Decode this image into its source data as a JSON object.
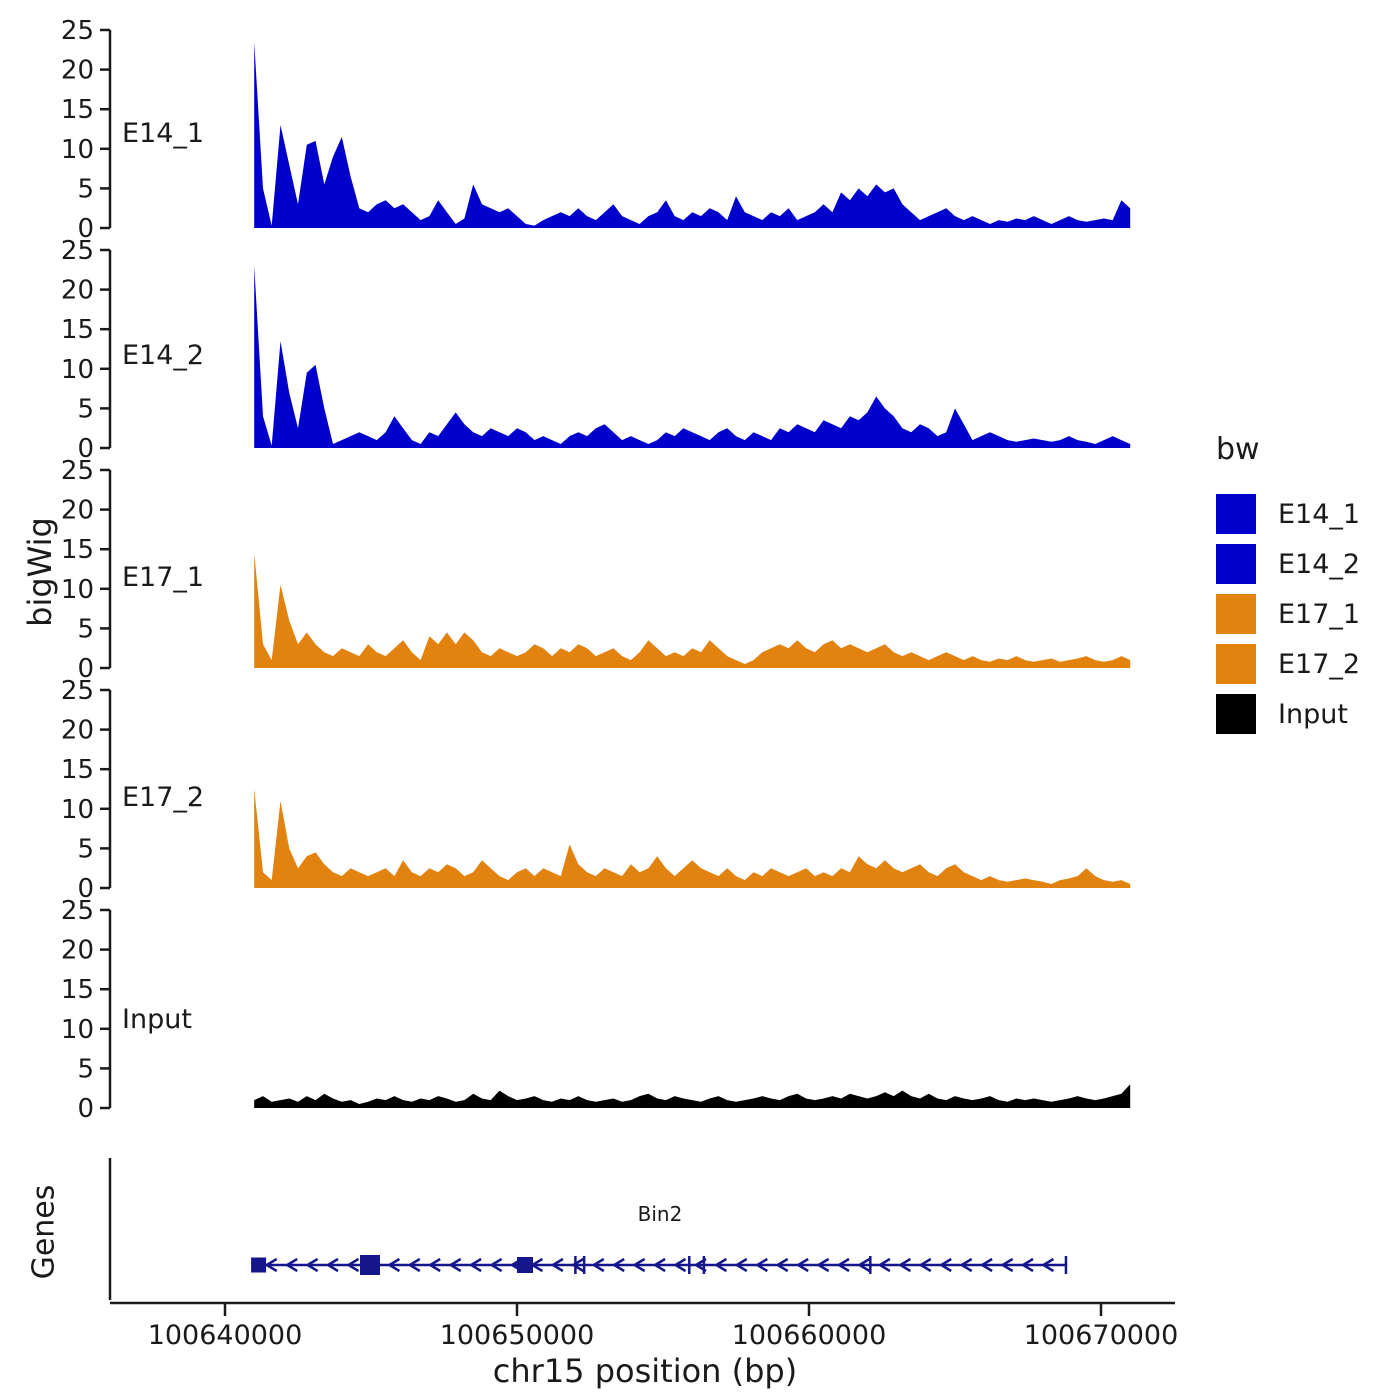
{
  "figure": {
    "background": "#FFFFFF"
  },
  "y_axis": {
    "title": "bigWig",
    "ticks": [
      25,
      20,
      15,
      10,
      5,
      0
    ]
  },
  "x_axis": {
    "title": "chr15 position (bp)",
    "ticks": [
      {
        "bp": 100640000,
        "label": "100640000"
      },
      {
        "bp": 100650000,
        "label": "100650000"
      },
      {
        "bp": 100660000,
        "label": "100660000"
      },
      {
        "bp": 100670000,
        "label": "100670000"
      }
    ]
  },
  "legend": {
    "title": "bw",
    "items": [
      {
        "label": "E14_1",
        "color": "#0000CD"
      },
      {
        "label": "E14_2",
        "color": "#0000CD"
      },
      {
        "label": "E17_1",
        "color": "#E2820F"
      },
      {
        "label": "E17_2",
        "color": "#E2820F"
      },
      {
        "label": "Input",
        "color": "#000000"
      }
    ]
  },
  "genes_panel": {
    "title": "Genes",
    "gene": {
      "name": "Bin2",
      "color": "#16168C",
      "strand": "-",
      "start": 100641000,
      "end": 100668800,
      "arrow_spacing": 700,
      "exons": [
        {
          "bp": 100641150,
          "size": 15
        },
        {
          "bp": 100644966,
          "size": 20
        },
        {
          "bp": 100650274,
          "size": 16
        }
      ],
      "boundaries": [
        100652000,
        100652300,
        100655900,
        100656400,
        100662100
      ]
    }
  },
  "chart_data": {
    "type": "area",
    "title": "",
    "xlabel": "chr15 position (bp)",
    "ylabel": "bigWig",
    "ylim": [
      0,
      25
    ],
    "x_start": 100641000,
    "x_step": 300,
    "x_unit": "bp",
    "legend_position": "right",
    "grid": false,
    "series": [
      {
        "name": "E14_1",
        "color": "#0000CD",
        "values": [
          23.5,
          5,
          0.3,
          13,
          8,
          3,
          10.5,
          11,
          5.5,
          9,
          11.5,
          6.5,
          2.5,
          2,
          3,
          3.5,
          2.5,
          3,
          2,
          1,
          1.5,
          3.5,
          2,
          0.5,
          1.2,
          5.5,
          3,
          2.5,
          2,
          2.5,
          1.5,
          0.5,
          0.3,
          1,
          1.5,
          2,
          1.5,
          2.5,
          1.5,
          1,
          2,
          3,
          1.5,
          1,
          0.5,
          1.5,
          2,
          3.5,
          1.5,
          1,
          2,
          1.5,
          2.5,
          2,
          1,
          4,
          2,
          1.5,
          1,
          2,
          1.5,
          2.5,
          1,
          1.5,
          2,
          3,
          2,
          4.5,
          3.5,
          5,
          4,
          5.5,
          4.5,
          5,
          3,
          2,
          1,
          1.5,
          2,
          2.5,
          1.5,
          1,
          1.5,
          1,
          0.5,
          1,
          0.8,
          1.2,
          1,
          1.5,
          1,
          0.5,
          1,
          1.5,
          1,
          0.8,
          1,
          1.2,
          1,
          3.5,
          2.5
        ]
      },
      {
        "name": "E14_2",
        "color": "#0000CD",
        "values": [
          23,
          4,
          0.3,
          13.5,
          7,
          2.5,
          9.5,
          10.5,
          5,
          0.5,
          1,
          1.5,
          2,
          1.5,
          1,
          2,
          4,
          2.5,
          1,
          0.5,
          2,
          1.5,
          3,
          4.5,
          3,
          2,
          1.5,
          2.5,
          2,
          1.5,
          2.5,
          2,
          1,
          1.5,
          1,
          0.5,
          1.5,
          2,
          1.5,
          2.5,
          3,
          2,
          1,
          1.5,
          1,
          0.5,
          1,
          2,
          1.5,
          2.5,
          2,
          1.5,
          1,
          2,
          2.5,
          1.5,
          1,
          2,
          1.5,
          1,
          2.5,
          2,
          3,
          2.5,
          2,
          3.5,
          3,
          2.5,
          4,
          3.5,
          4.5,
          6.5,
          5,
          4,
          2.5,
          2,
          3,
          2.5,
          1.5,
          2,
          5,
          3,
          1,
          1.5,
          2,
          1.5,
          1,
          0.8,
          1,
          1.2,
          1,
          0.8,
          1,
          1.5,
          1,
          0.8,
          0.5,
          1,
          1.5,
          1,
          0.5
        ]
      },
      {
        "name": "E17_1",
        "color": "#E2820F",
        "values": [
          14.5,
          3,
          1,
          10.5,
          6,
          3,
          4.5,
          3,
          2,
          1.5,
          2.5,
          2,
          1.5,
          3,
          2,
          1.5,
          2.5,
          3.5,
          2,
          1,
          4,
          3,
          4.5,
          3,
          4.5,
          3.5,
          2,
          1.5,
          2.5,
          2,
          1.5,
          2,
          3,
          2.5,
          1.5,
          2.5,
          2,
          3,
          2.5,
          1.5,
          2,
          2.5,
          1.5,
          1,
          2,
          3.5,
          2.5,
          1.5,
          2,
          1.5,
          2.5,
          2,
          3.5,
          2.5,
          1.5,
          1,
          0.5,
          1,
          2,
          2.5,
          3,
          2.5,
          3.5,
          2.5,
          2,
          3,
          3.5,
          2.5,
          3,
          2.5,
          2,
          2.5,
          3,
          2,
          1.5,
          2,
          1.5,
          1,
          1.5,
          2,
          1.5,
          1,
          1.5,
          1,
          0.8,
          1.2,
          1,
          1.5,
          1,
          0.8,
          1,
          1.2,
          0.8,
          1,
          1.2,
          1.5,
          1,
          0.8,
          1,
          1.5,
          1
        ]
      },
      {
        "name": "E17_2",
        "color": "#E2820F",
        "values": [
          12.5,
          2,
          1,
          11,
          5,
          2.5,
          4,
          4.5,
          3,
          2,
          1.5,
          2.5,
          2,
          1.5,
          2,
          2.5,
          1.5,
          3.5,
          2,
          1.5,
          2.5,
          2,
          3,
          2.5,
          1.5,
          2,
          3.5,
          2.5,
          1.5,
          1,
          2,
          2.5,
          1.5,
          2.5,
          2,
          1.5,
          5.5,
          3,
          2,
          1.5,
          2.5,
          2,
          1.5,
          3,
          2,
          2.5,
          4,
          2.5,
          1.5,
          2.5,
          3.5,
          2.5,
          2,
          1.5,
          2.5,
          1.5,
          1,
          2,
          1.5,
          2.5,
          2,
          1.5,
          2,
          2.5,
          1.5,
          2,
          1.5,
          2.5,
          2,
          4,
          3,
          2.5,
          3.5,
          2.5,
          2,
          2.5,
          3,
          2,
          1.5,
          2.5,
          3,
          2,
          1.5,
          1,
          1.5,
          1,
          0.8,
          1,
          1.2,
          1,
          0.8,
          0.5,
          1,
          1.2,
          1.5,
          2.5,
          1.5,
          1,
          0.8,
          1,
          0.5
        ]
      },
      {
        "name": "Input",
        "color": "#000000",
        "values": [
          1,
          1.5,
          0.8,
          1,
          1.2,
          0.8,
          1.5,
          1,
          1.8,
          1.2,
          0.8,
          1,
          0.5,
          0.8,
          1.2,
          1,
          1.5,
          1,
          0.8,
          1.2,
          1,
          1.5,
          1.2,
          0.8,
          1,
          1.8,
          1.2,
          1,
          2.2,
          1.5,
          1,
          1.2,
          1.5,
          1,
          0.8,
          1.2,
          1,
          1.5,
          1,
          0.8,
          1,
          1.2,
          0.8,
          1,
          1.5,
          1.8,
          1.2,
          1,
          1.5,
          1.2,
          1,
          0.8,
          1.2,
          1.5,
          1,
          0.8,
          1,
          1.2,
          1.5,
          1.2,
          1,
          1.5,
          1.8,
          1.2,
          1,
          1.2,
          1.5,
          1.2,
          1.8,
          1.5,
          1.2,
          1.5,
          2,
          1.5,
          2.2,
          1.5,
          1.2,
          1.8,
          1.2,
          1,
          1.5,
          1.2,
          1,
          1.2,
          1.5,
          1,
          0.8,
          1.2,
          1,
          1.2,
          1,
          0.8,
          1,
          1.2,
          1.5,
          1.2,
          1,
          1.2,
          1.5,
          1.8,
          3
        ]
      }
    ]
  }
}
